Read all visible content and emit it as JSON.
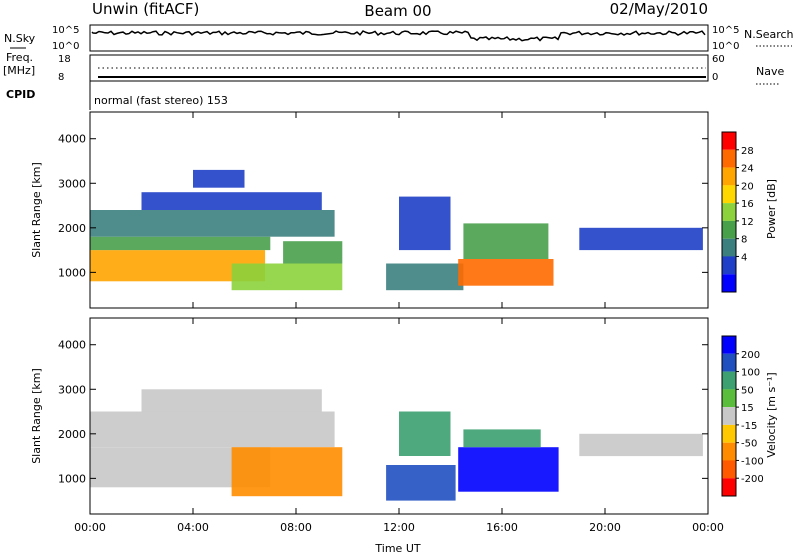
{
  "header": {
    "station": "Unwin (fitACF)",
    "beam": "Beam 00",
    "date": "02/May/2010"
  },
  "params": {
    "nsky_label": "N.Sky",
    "nsearch_label": "N.Search",
    "nsky_ticks": [
      "10^5",
      "10^0"
    ],
    "freq_label": "Freq.",
    "freq_unit": "[MHz]",
    "freq_ticks": [
      "18",
      "8"
    ],
    "nave_label": "Nave",
    "nave_ticks": [
      "60",
      "0"
    ],
    "cpid_label": "CPID",
    "cpid_text": "normal (fast stereo) 153"
  },
  "colors": {
    "power": [
      "#0000ff",
      "#1f3fc8",
      "#3c7f7f",
      "#48a04a",
      "#8cd23c",
      "#ffd700",
      "#ffa500",
      "#ff6a00",
      "#ff0000"
    ],
    "velocity": [
      "#0000ff",
      "#2050c0",
      "#3ca070",
      "#5abe3c",
      "#c8c8c8",
      "#ffc800",
      "#ff8c00",
      "#ff5a00",
      "#ff0000"
    ]
  },
  "chart_data": [
    {
      "type": "heatmap",
      "name": "power",
      "xlabel": "",
      "ylabel": "Slant Range [km]",
      "x_ticks": [
        "",
        "",
        "",
        "",
        "",
        "",
        ""
      ],
      "y_ticks": [
        "1000",
        "2000",
        "3000",
        "4000"
      ],
      "y_tick_values": [
        1000,
        2000,
        3000,
        4000
      ],
      "ylim": [
        200,
        4600
      ],
      "xlim_hours": [
        0,
        24
      ],
      "colorbar": {
        "label": "Power [dB]",
        "ticks": [
          "4",
          "8",
          "12",
          "16",
          "20",
          "24",
          "28"
        ],
        "range": [
          0,
          32
        ]
      },
      "regions": [
        {
          "t0": 0.0,
          "t1": 6.8,
          "r0": 800,
          "r1": 1500,
          "value": 22
        },
        {
          "t0": 0.0,
          "t1": 7.0,
          "r0": 1500,
          "r1": 1800,
          "value": 12
        },
        {
          "t0": 0.0,
          "t1": 9.5,
          "r0": 1800,
          "r1": 2400,
          "value": 9
        },
        {
          "t0": 2.0,
          "t1": 9.0,
          "r0": 2400,
          "r1": 2800,
          "value": 6
        },
        {
          "t0": 4.0,
          "t1": 6.0,
          "r0": 2900,
          "r1": 3300,
          "value": 4
        },
        {
          "t0": 5.5,
          "t1": 9.8,
          "r0": 600,
          "r1": 1200,
          "value": 16
        },
        {
          "t0": 7.5,
          "t1": 9.8,
          "r0": 1200,
          "r1": 1700,
          "value": 11
        },
        {
          "t0": 11.5,
          "t1": 14.5,
          "r0": 600,
          "r1": 1200,
          "value": 10
        },
        {
          "t0": 12.0,
          "t1": 14.0,
          "r0": 1500,
          "r1": 2700,
          "value": 5
        },
        {
          "t0": 14.3,
          "t1": 18.0,
          "r0": 700,
          "r1": 1300,
          "value": 27
        },
        {
          "t0": 14.5,
          "t1": 17.8,
          "r0": 1300,
          "r1": 2100,
          "value": 12
        },
        {
          "t0": 19.0,
          "t1": 23.8,
          "r0": 1500,
          "r1": 2000,
          "value": 7
        }
      ]
    },
    {
      "type": "heatmap",
      "name": "velocity",
      "xlabel": "Time UT",
      "ylabel": "Slant Range [km]",
      "x_ticks": [
        "00:00",
        "04:00",
        "08:00",
        "12:00",
        "16:00",
        "20:00",
        "00:00"
      ],
      "x_tick_hours": [
        0,
        4,
        8,
        12,
        16,
        20,
        24
      ],
      "y_ticks": [
        "1000",
        "2000",
        "3000",
        "4000"
      ],
      "y_tick_values": [
        1000,
        2000,
        3000,
        4000
      ],
      "ylim": [
        200,
        4600
      ],
      "xlim_hours": [
        0,
        24
      ],
      "colorbar": {
        "label": "Velocity [m s⁻¹]",
        "ticks": [
          "200",
          "100",
          "50",
          "15",
          "-15",
          "-50",
          "-100",
          "-200"
        ]
      },
      "regions": [
        {
          "t0": 0.0,
          "t1": 7.0,
          "r0": 800,
          "r1": 1700,
          "value": 0
        },
        {
          "t0": 0.0,
          "t1": 9.5,
          "r0": 1700,
          "r1": 2500,
          "value": 5
        },
        {
          "t0": 2.0,
          "t1": 9.0,
          "r0": 2500,
          "r1": 3000,
          "value": 0
        },
        {
          "t0": 5.5,
          "t1": 9.8,
          "r0": 600,
          "r1": 1700,
          "value": -70
        },
        {
          "t0": 11.5,
          "t1": 14.2,
          "r0": 500,
          "r1": 1300,
          "value": 150
        },
        {
          "t0": 12.0,
          "t1": 14.0,
          "r0": 1500,
          "r1": 2500,
          "value": 60
        },
        {
          "t0": 14.3,
          "t1": 18.2,
          "r0": 700,
          "r1": 1700,
          "value": 250
        },
        {
          "t0": 14.5,
          "t1": 17.5,
          "r0": 1700,
          "r1": 2100,
          "value": 90
        },
        {
          "t0": 19.0,
          "t1": 23.8,
          "r0": 1500,
          "r1": 2000,
          "value": 0
        }
      ]
    }
  ]
}
